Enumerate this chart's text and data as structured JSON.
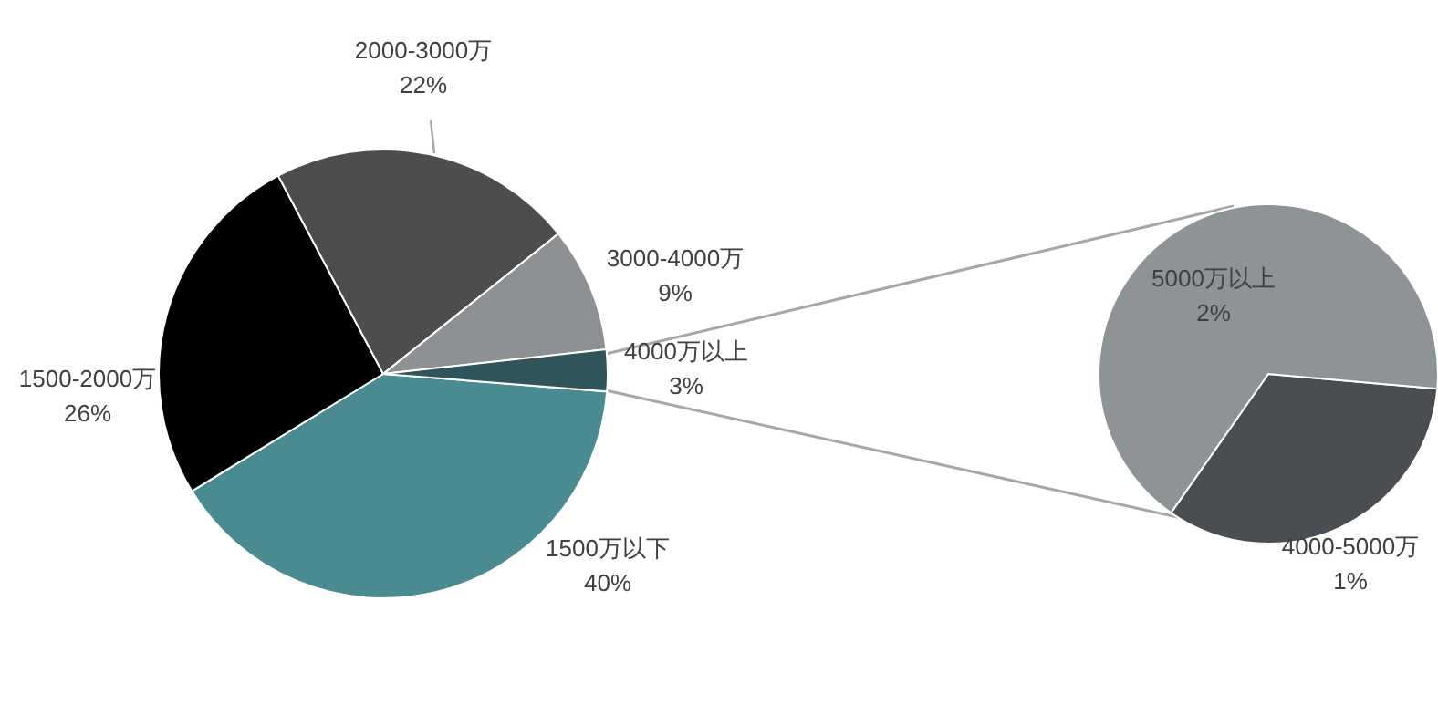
{
  "chart_data": [
    {
      "type": "pie",
      "categories": [
        "1500万以下",
        "1500-2000万",
        "2000-3000万",
        "3000-4000万",
        "4000万以上"
      ],
      "values": [
        40,
        26,
        22,
        9,
        3
      ],
      "colors": [
        "#4a8a91",
        "#000000",
        "#4d4d4d",
        "#8e9193",
        "#2f5459"
      ],
      "value_labels": [
        "40%",
        "26%",
        "22%",
        "9%",
        "3%"
      ]
    },
    {
      "type": "pie",
      "categories": [
        "4000-5000万",
        "5000万以上"
      ],
      "values": [
        1,
        2
      ],
      "colors": [
        "#4a4d52",
        "#8e9396"
      ],
      "value_labels": [
        "1%",
        "2%"
      ]
    }
  ]
}
